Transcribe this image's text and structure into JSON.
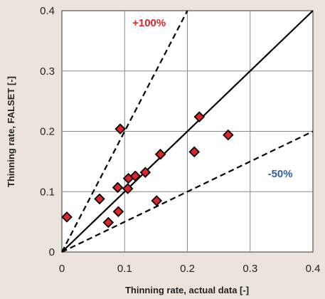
{
  "chart_data": {
    "type": "scatter",
    "xlabel": "Thinning rate, actual data [-]",
    "ylabel": "Thinning rate,  FALSET [-]",
    "xlim": [
      0,
      0.4
    ],
    "ylim": [
      0,
      0.4
    ],
    "xticks": [
      "0",
      "0.1",
      "0.2",
      "0.3",
      "0.4"
    ],
    "yticks": [
      "0",
      "0.1",
      "0.2",
      "0.3",
      "0.4"
    ],
    "grid": true,
    "points": [
      {
        "x": 0.008,
        "y": 0.058
      },
      {
        "x": 0.06,
        "y": 0.088
      },
      {
        "x": 0.074,
        "y": 0.049
      },
      {
        "x": 0.089,
        "y": 0.107
      },
      {
        "x": 0.09,
        "y": 0.067
      },
      {
        "x": 0.093,
        "y": 0.204
      },
      {
        "x": 0.105,
        "y": 0.105
      },
      {
        "x": 0.106,
        "y": 0.122
      },
      {
        "x": 0.117,
        "y": 0.126
      },
      {
        "x": 0.133,
        "y": 0.132
      },
      {
        "x": 0.151,
        "y": 0.085
      },
      {
        "x": 0.157,
        "y": 0.162
      },
      {
        "x": 0.211,
        "y": 0.166
      },
      {
        "x": 0.219,
        "y": 0.224
      },
      {
        "x": 0.265,
        "y": 0.194
      }
    ],
    "marker_color": "#e0252a",
    "reference_lines": [
      {
        "style": "solid",
        "slope": 1
      },
      {
        "style": "dashed",
        "slope": 2
      },
      {
        "style": "dashed",
        "slope": 0.5
      }
    ],
    "annotations": [
      {
        "text": "+100%",
        "color": "#e0252a",
        "x": 0.139,
        "y": 0.374
      },
      {
        "text": "-50%",
        "color": "#2b5fa8",
        "x": 0.348,
        "y": 0.124
      }
    ]
  }
}
